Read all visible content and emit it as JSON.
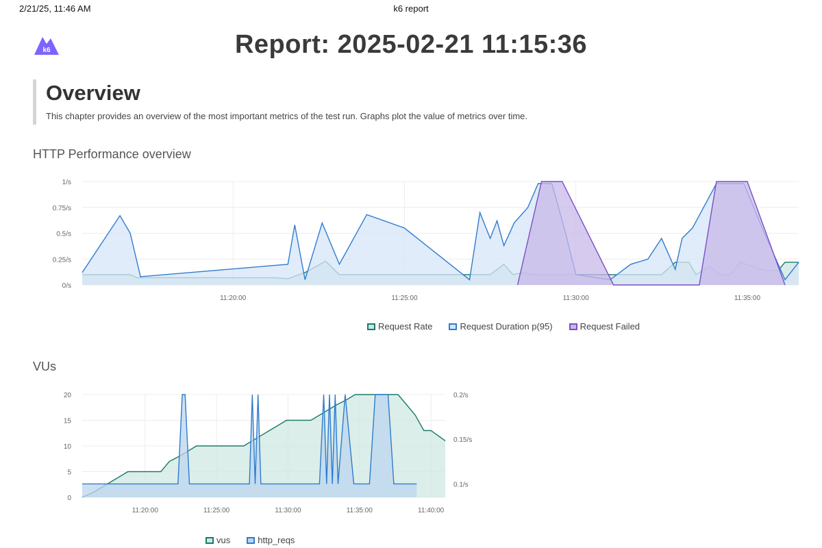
{
  "print_header": {
    "date": "2/21/25, 11:46 AM",
    "title": "k6 report"
  },
  "logo": {
    "text": "k6",
    "color": "#7d64ff"
  },
  "report": {
    "title": "Report: 2025-02-21 11:15:36"
  },
  "overview": {
    "heading": "Overview",
    "description": "This chapter provides an overview of the most important metrics of the test run. Graphs plot the value of metrics over time."
  },
  "sections": {
    "http_title": "HTTP Performance overview",
    "vus_title": "VUs"
  },
  "chart_data": [
    {
      "type": "area",
      "title": "HTTP Performance overview",
      "x_range": [
        "11:15:36",
        "11:36:30"
      ],
      "x_ticks": [
        "11:20:00",
        "11:25:00",
        "11:30:00",
        "11:35:00"
      ],
      "y_ticks": [
        "0/s",
        "0.25/s",
        "0.5/s",
        "0.75/s",
        "1/s"
      ],
      "ylim": [
        0,
        1
      ],
      "grid": true,
      "legend_position": "bottom-center",
      "series": [
        {
          "name": "Request Rate",
          "color": "#1c7a6a",
          "fill": "#c9e6e0",
          "points": [
            [
              "11:15:36",
              0.1
            ],
            [
              "11:17:00",
              0.1
            ],
            [
              "11:17:12",
              0.07
            ],
            [
              "11:21:12",
              0.07
            ],
            [
              "11:21:36",
              0.06
            ],
            [
              "11:22:06",
              0.12
            ],
            [
              "11:22:42",
              0.23
            ],
            [
              "11:23:06",
              0.1
            ],
            [
              "11:25:00",
              0.1
            ],
            [
              "11:27:30",
              0.1
            ],
            [
              "11:27:54",
              0.2
            ],
            [
              "11:28:10",
              0.1
            ],
            [
              "11:28:30",
              0.12
            ],
            [
              "11:28:42",
              0.1
            ],
            [
              "11:30:00",
              0.1
            ],
            [
              "11:32:30",
              0.1
            ],
            [
              "11:32:54",
              0.22
            ],
            [
              "11:33:18",
              0.22
            ],
            [
              "11:33:30",
              0.1
            ],
            [
              "11:33:54",
              0.18
            ],
            [
              "11:34:12",
              0.1
            ],
            [
              "11:34:30",
              0.1
            ],
            [
              "11:34:48",
              0.22
            ],
            [
              "11:35:30",
              0.14
            ],
            [
              "11:35:54",
              0.14
            ],
            [
              "11:36:06",
              0.22
            ],
            [
              "11:36:30",
              0.22
            ]
          ]
        },
        {
          "name": "Request Duration p(95)",
          "color": "#2f7bd0",
          "fill": "#d6e6f7",
          "points": [
            [
              "11:15:36",
              0.12
            ],
            [
              "11:16:42",
              0.67
            ],
            [
              "11:17:00",
              0.5
            ],
            [
              "11:17:18",
              0.08
            ],
            [
              "11:21:36",
              0.2
            ],
            [
              "11:21:48",
              0.58
            ],
            [
              "11:22:06",
              0.05
            ],
            [
              "11:22:36",
              0.6
            ],
            [
              "11:23:06",
              0.2
            ],
            [
              "11:23:54",
              0.68
            ],
            [
              "11:25:00",
              0.55
            ],
            [
              "11:26:54",
              0.05
            ],
            [
              "11:27:12",
              0.7
            ],
            [
              "11:27:30",
              0.45
            ],
            [
              "11:27:42",
              0.62
            ],
            [
              "11:27:54",
              0.38
            ],
            [
              "11:28:12",
              0.6
            ],
            [
              "11:28:36",
              0.75
            ],
            [
              "11:28:54",
              0.98
            ],
            [
              "11:29:18",
              0.98
            ],
            [
              "11:29:42",
              0.5
            ],
            [
              "11:30:00",
              0.1
            ],
            [
              "11:31:00",
              0.05
            ],
            [
              "11:31:36",
              0.2
            ],
            [
              "11:32:06",
              0.25
            ],
            [
              "11:32:30",
              0.45
            ],
            [
              "11:32:54",
              0.15
            ],
            [
              "11:33:06",
              0.45
            ],
            [
              "11:33:24",
              0.55
            ],
            [
              "11:34:06",
              0.98
            ],
            [
              "11:34:54",
              0.98
            ],
            [
              "11:35:30",
              0.5
            ],
            [
              "11:36:06",
              0.05
            ],
            [
              "11:36:30",
              0.22
            ]
          ]
        },
        {
          "name": "Request Failed",
          "color": "#7a4fc4",
          "fill": "#c8b8e8",
          "points": [
            [
              "11:28:18",
              0
            ],
            [
              "11:29:00",
              1
            ],
            [
              "11:29:36",
              1
            ],
            [
              "11:31:06",
              0
            ],
            [
              "11:33:36",
              0
            ],
            [
              "11:34:06",
              1
            ],
            [
              "11:35:00",
              1
            ],
            [
              "11:36:06",
              0
            ]
          ]
        }
      ]
    },
    {
      "type": "area",
      "title": "VUs",
      "x_range": [
        "11:15:36",
        "11:41:00"
      ],
      "x_ticks": [
        "11:20:00",
        "11:25:00",
        "11:30:00",
        "11:35:00",
        "11:40:00"
      ],
      "y_ticks_left": [
        "0",
        "5",
        "10",
        "15",
        "20"
      ],
      "ylim_left": [
        0,
        20
      ],
      "y_ticks_right": [
        "0.1/s",
        "0.15/s",
        "0.2/s"
      ],
      "ylim_right": [
        0.085,
        0.2
      ],
      "grid": true,
      "legend_position": "bottom-center",
      "series": [
        {
          "name": "vus",
          "axis": "left",
          "color": "#1c7a6a",
          "fill": "#cfe8e2",
          "points": [
            [
              "11:15:36",
              0
            ],
            [
              "11:16:24",
              1
            ],
            [
              "11:17:00",
              2
            ],
            [
              "11:17:36",
              3
            ],
            [
              "11:18:12",
              4
            ],
            [
              "11:18:48",
              5
            ],
            [
              "11:21:06",
              5
            ],
            [
              "11:21:42",
              7
            ],
            [
              "11:22:24",
              8
            ],
            [
              "11:23:00",
              9
            ],
            [
              "11:23:36",
              10
            ],
            [
              "11:26:54",
              10
            ],
            [
              "11:27:30",
              11
            ],
            [
              "11:28:06",
              12
            ],
            [
              "11:28:42",
              13
            ],
            [
              "11:29:18",
              14
            ],
            [
              "11:29:54",
              15
            ],
            [
              "11:31:36",
              15
            ],
            [
              "11:32:12",
              16
            ],
            [
              "11:32:48",
              17
            ],
            [
              "11:33:24",
              18
            ],
            [
              "11:34:06",
              19
            ],
            [
              "11:34:42",
              20
            ],
            [
              "11:37:42",
              20
            ],
            [
              "11:38:18",
              18
            ],
            [
              "11:38:54",
              16
            ],
            [
              "11:39:30",
              13
            ],
            [
              "11:40:00",
              13
            ],
            [
              "11:40:30",
              12
            ],
            [
              "11:41:00",
              11
            ]
          ]
        },
        {
          "name": "http_reqs",
          "axis": "right",
          "color": "#2f7bd0",
          "fill": "#bcd6ee",
          "points": [
            [
              "11:15:36",
              0.1
            ],
            [
              "11:22:18",
              0.1
            ],
            [
              "11:22:36",
              0.2
            ],
            [
              "11:22:48",
              0.2
            ],
            [
              "11:23:06",
              0.1
            ],
            [
              "11:27:18",
              0.1
            ],
            [
              "11:27:30",
              0.2
            ],
            [
              "11:27:42",
              0.1
            ],
            [
              "11:27:54",
              0.2
            ],
            [
              "11:28:06",
              0.1
            ],
            [
              "11:32:12",
              0.1
            ],
            [
              "11:32:30",
              0.2
            ],
            [
              "11:32:42",
              0.1
            ],
            [
              "11:32:54",
              0.2
            ],
            [
              "11:33:06",
              0.1
            ],
            [
              "11:33:18",
              0.2
            ],
            [
              "11:33:30",
              0.1
            ],
            [
              "11:34:00",
              0.2
            ],
            [
              "11:34:36",
              0.1
            ],
            [
              "11:35:42",
              0.1
            ],
            [
              "11:36:06",
              0.2
            ],
            [
              "11:37:00",
              0.2
            ],
            [
              "11:37:24",
              0.1
            ],
            [
              "11:39:00",
              0.1
            ]
          ]
        }
      ]
    }
  ]
}
